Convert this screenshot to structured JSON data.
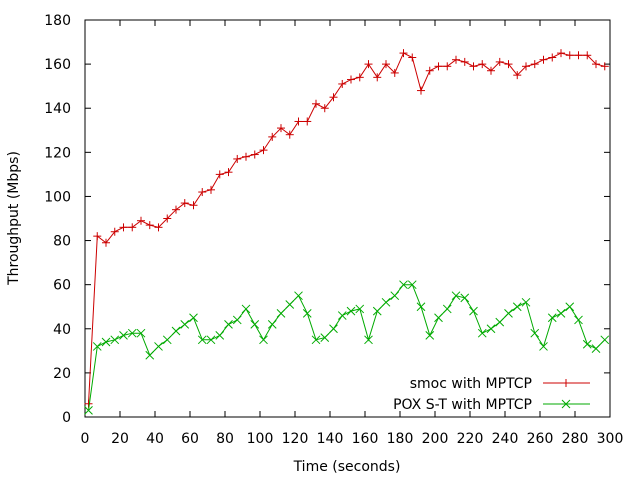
{
  "chart_data": {
    "type": "line",
    "xlabel": "Time (seconds)",
    "ylabel": "Throughput (Mbps)",
    "xlim": [
      0,
      300
    ],
    "ylim": [
      0,
      180
    ],
    "xticks": [
      0,
      20,
      40,
      60,
      80,
      100,
      120,
      140,
      160,
      180,
      200,
      220,
      240,
      260,
      280,
      300
    ],
    "yticks": [
      0,
      20,
      40,
      60,
      80,
      100,
      120,
      140,
      160,
      180
    ],
    "grid": false,
    "legend_position": "bottom-right",
    "series": [
      {
        "name": "smoc with MPTCP",
        "color": "#cc0000",
        "marker": "plus",
        "x": [
          2,
          7,
          12,
          17,
          22,
          27,
          32,
          37,
          42,
          47,
          52,
          57,
          62,
          67,
          72,
          77,
          82,
          87,
          92,
          97,
          102,
          107,
          112,
          117,
          122,
          127,
          132,
          137,
          142,
          147,
          152,
          157,
          162,
          167,
          172,
          177,
          182,
          187,
          192,
          197,
          202,
          207,
          212,
          217,
          222,
          227,
          232,
          237,
          242,
          247,
          252,
          257,
          262,
          267,
          272,
          277,
          282,
          287,
          292,
          297
        ],
        "y": [
          6,
          82,
          79,
          84,
          86,
          86,
          89,
          87,
          86,
          90,
          94,
          97,
          96,
          102,
          103,
          110,
          111,
          117,
          118,
          119,
          121,
          127,
          131,
          128,
          134,
          134,
          142,
          140,
          145,
          151,
          153,
          154,
          160,
          154,
          160,
          156,
          165,
          163,
          148,
          157,
          159,
          159,
          162,
          161,
          159,
          160,
          157,
          161,
          160,
          155,
          159,
          160,
          162,
          163,
          165,
          164,
          164,
          164,
          160,
          159
        ]
      },
      {
        "name": "POX S-T with MPTCP",
        "color": "#00aa00",
        "marker": "cross",
        "x": [
          2,
          7,
          12,
          17,
          22,
          27,
          32,
          37,
          42,
          47,
          52,
          57,
          62,
          67,
          72,
          77,
          82,
          87,
          92,
          97,
          102,
          107,
          112,
          117,
          122,
          127,
          132,
          137,
          142,
          147,
          152,
          157,
          162,
          167,
          172,
          177,
          182,
          187,
          192,
          197,
          202,
          207,
          212,
          217,
          222,
          227,
          232,
          237,
          242,
          247,
          252,
          257,
          262,
          267,
          272,
          277,
          282,
          287,
          292,
          297
        ],
        "y": [
          3,
          32,
          34,
          35,
          37,
          38,
          38,
          28,
          32,
          35,
          39,
          42,
          45,
          35,
          35,
          37,
          42,
          44,
          49,
          42,
          35,
          42,
          47,
          51,
          55,
          47,
          35,
          36,
          40,
          46,
          48,
          49,
          35,
          48,
          52,
          55,
          60,
          60,
          50,
          37,
          45,
          49,
          55,
          54,
          48,
          38,
          40,
          43,
          47,
          50,
          52,
          38,
          32,
          45,
          47,
          50,
          44,
          33,
          31,
          35
        ]
      }
    ]
  }
}
